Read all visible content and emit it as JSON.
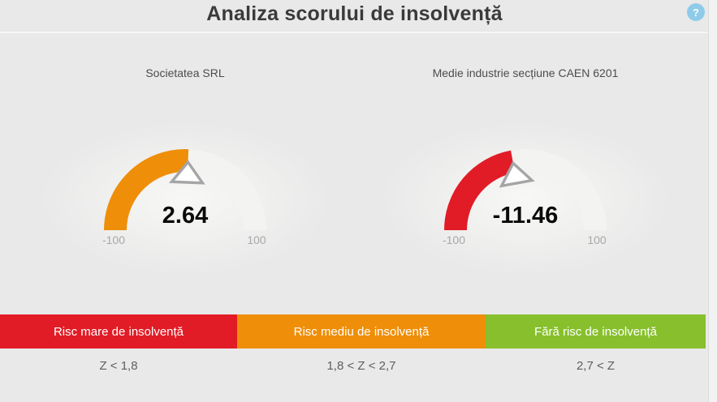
{
  "header": {
    "title": "Analiza scorului de insolvență",
    "help_label": "?"
  },
  "chart_data": [
    {
      "type": "gauge",
      "title": "Societatea SRL",
      "value": 2.64,
      "value_label": "2.64",
      "min": -100,
      "max": 100,
      "min_label": "-100",
      "max_label": "100",
      "fill_color": "#ef8e08"
    },
    {
      "type": "gauge",
      "title": "Medie industrie secțiune CAEN 6201",
      "value": -11.46,
      "value_label": "-11.46",
      "min": -100,
      "max": 100,
      "min_label": "-100",
      "max_label": "100",
      "fill_color": "#e11c26"
    }
  ],
  "legend": {
    "bands": [
      {
        "label": "Risc mare de insolvență",
        "range": "Z < 1,8",
        "color": "#e11c26"
      },
      {
        "label": "Risc mediu de insolvență",
        "range": "1,8 < Z < 2,7",
        "color": "#ef8e08"
      },
      {
        "label": "Fără risc de insolvență",
        "range": "2,7 < Z",
        "color": "#87c02c"
      }
    ]
  },
  "colors": {
    "risk_high": "#e11c26",
    "risk_medium": "#ef8e08",
    "risk_none": "#87c02c",
    "help_icon_bg": "#8ecbe8",
    "background": "#e9e9e9"
  }
}
